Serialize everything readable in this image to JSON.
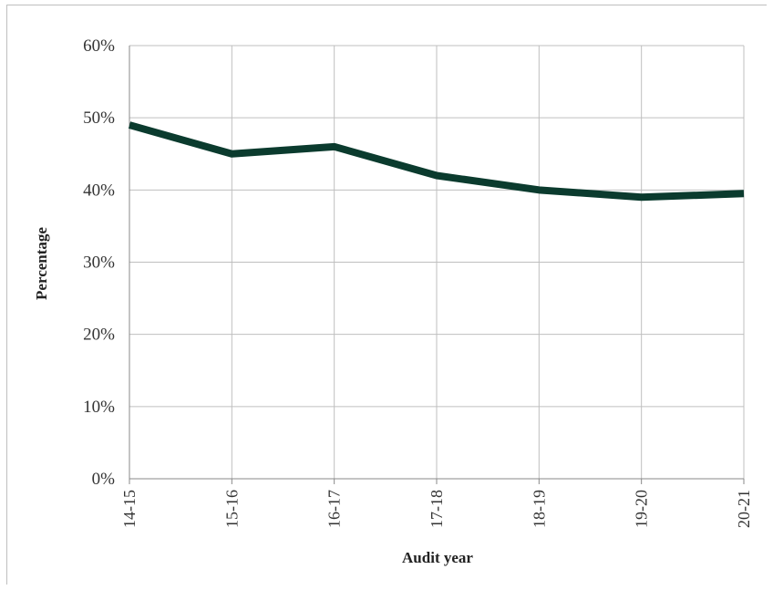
{
  "chart_data": {
    "type": "line",
    "title": "",
    "xlabel": "Audit year",
    "ylabel": "Percentage",
    "categories": [
      "14-15",
      "15-16",
      "16-17",
      "17-18",
      "18-19",
      "19-20",
      "20-21"
    ],
    "series": [
      {
        "values": [
          49,
          45,
          46,
          42,
          40,
          39,
          39.5
        ]
      }
    ],
    "ylim": [
      0,
      60
    ],
    "yticks": [
      "0%",
      "10%",
      "20%",
      "30%",
      "40%",
      "50%",
      "60%"
    ],
    "ytick_values": [
      0,
      10,
      20,
      30,
      40,
      50,
      60
    ],
    "grid": true,
    "line_color": "#0b3b2e"
  }
}
